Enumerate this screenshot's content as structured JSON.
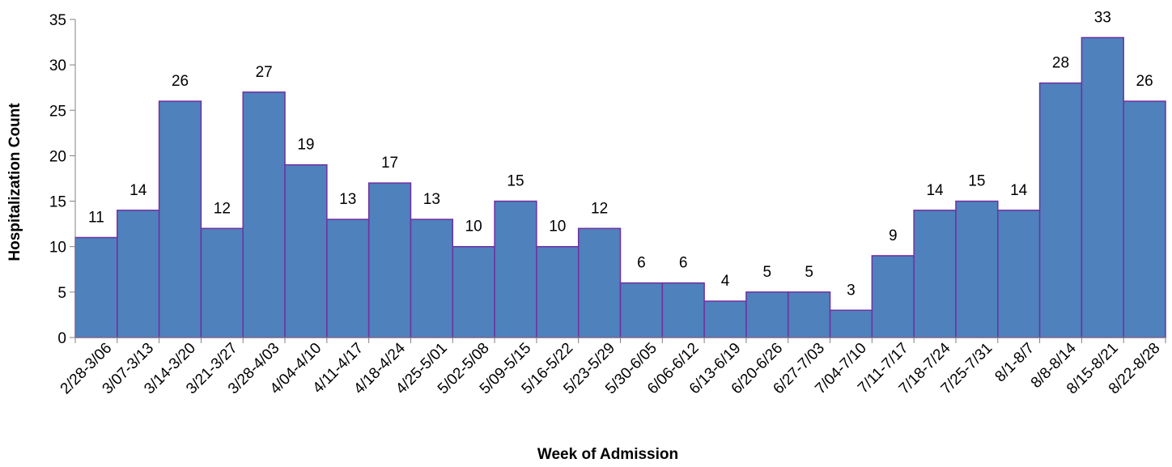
{
  "chart_data": {
    "type": "bar",
    "title": "",
    "xlabel": "Week of Admission",
    "ylabel": "Hospitalization Count",
    "ylim": [
      0,
      35
    ],
    "yticks": [
      0,
      5,
      10,
      15,
      20,
      25,
      30,
      35
    ],
    "grid": false,
    "legend": "none",
    "bar_color": "#4F81BD",
    "bar_edge_color": "#7030A0",
    "categories": [
      "2/28-3/06",
      "3/07-3/13",
      "3/14-3/20",
      "3/21-3/27",
      "3/28-4/03",
      "4/04-4/10",
      "4/11-4/17",
      "4/18-4/24",
      "4/25-5/01",
      "5/02-5/08",
      "5/09-5/15",
      "5/16-5/22",
      "5/23-5/29",
      "5/30-6/05",
      "6/06-6/12",
      "6/13-6/19",
      "6/20-6/26",
      "6/27-7/03",
      "7/04-7/10",
      "7/11-7/17",
      "7/18-7/24",
      "7/25-7/31",
      "8/1-8/7",
      "8/8-8/14",
      "8/15-8/21",
      "8/22-8/28"
    ],
    "values": [
      11,
      14,
      26,
      12,
      27,
      19,
      13,
      17,
      13,
      10,
      15,
      10,
      12,
      6,
      6,
      4,
      5,
      5,
      3,
      9,
      14,
      15,
      14,
      28,
      33,
      26
    ]
  }
}
